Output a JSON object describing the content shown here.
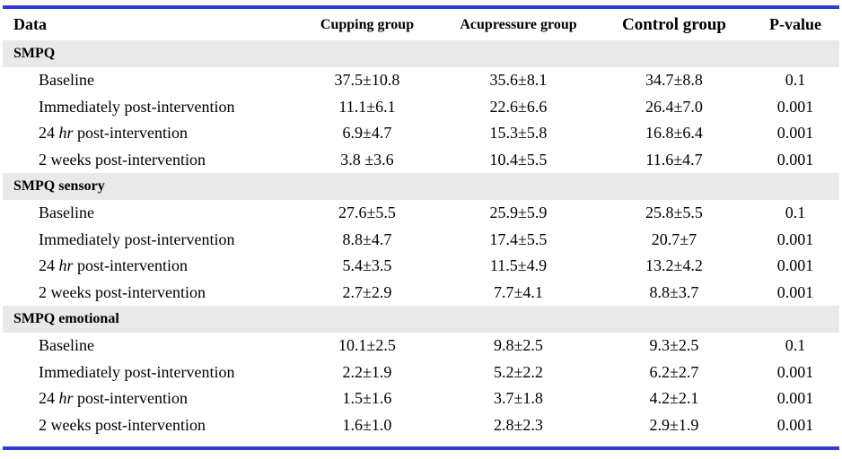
{
  "table": {
    "headers": [
      "Data",
      "Cupping group",
      "Acupressure group",
      "Control group",
      "P-value"
    ],
    "sections": [
      {
        "title": "SMPQ",
        "rows": [
          {
            "pre": "Baseline",
            "hr": "",
            "post": "",
            "values": [
              "37.5±10.8",
              "35.6±8.1",
              "34.7±8.8",
              "0.1"
            ]
          },
          {
            "pre": "Immediately post-intervention",
            "hr": "",
            "post": "",
            "values": [
              "11.1±6.1",
              "22.6±6.6",
              "26.4±7.0",
              "0.001"
            ]
          },
          {
            "pre": "24 ",
            "hr": "hr",
            "post": " post-intervention",
            "values": [
              "6.9±4.7",
              "15.3±5.8",
              "16.8±6.4",
              "0.001"
            ]
          },
          {
            "pre": "2 weeks post-intervention",
            "hr": "",
            "post": "",
            "values": [
              "3.8 ±3.6",
              "10.4±5.5",
              "11.6±4.7",
              "0.001"
            ]
          }
        ]
      },
      {
        "title": "SMPQ sensory",
        "rows": [
          {
            "pre": "Baseline",
            "hr": "",
            "post": "",
            "values": [
              "27.6±5.5",
              "25.9±5.9",
              "25.8±5.5",
              "0.1"
            ]
          },
          {
            "pre": "Immediately post-intervention",
            "hr": "",
            "post": "",
            "values": [
              "8.8±4.7",
              "17.4±5.5",
              "20.7±7",
              "0.001"
            ]
          },
          {
            "pre": "24 ",
            "hr": "hr",
            "post": " post-intervention",
            "values": [
              "5.4±3.5",
              "11.5±4.9",
              "13.2±4.2",
              "0.001"
            ]
          },
          {
            "pre": "2 weeks post-intervention",
            "hr": "",
            "post": "",
            "values": [
              "2.7±2.9",
              "7.7±4.1",
              "8.8±3.7",
              "0.001"
            ]
          }
        ]
      },
      {
        "title": "SMPQ emotional",
        "rows": [
          {
            "pre": "Baseline",
            "hr": "",
            "post": "",
            "values": [
              "10.1±2.5",
              "9.8±2.5",
              "9.3±2.5",
              "0.1"
            ]
          },
          {
            "pre": "Immediately post-intervention",
            "hr": "",
            "post": "",
            "values": [
              "2.2±1.9",
              "5.2±2.2",
              "6.2±2.7",
              "0.001"
            ]
          },
          {
            "pre": "24 ",
            "hr": "hr",
            "post": " post-intervention",
            "values": [
              "1.5±1.6",
              "3.7±1.8",
              "4.2±2.1",
              "0.001"
            ]
          },
          {
            "pre": "2 weeks post-intervention",
            "hr": "",
            "post": "",
            "values": [
              "1.6±1.0",
              "2.8±2.3",
              "2.9±1.9",
              "0.001"
            ]
          }
        ]
      }
    ]
  },
  "colors": {
    "rule": "#2e3bd6",
    "section_bg": "#e9e9e9"
  }
}
